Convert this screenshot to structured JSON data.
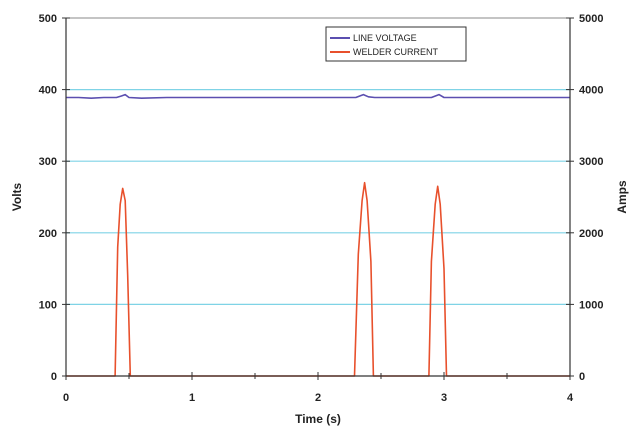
{
  "chart_data": {
    "type": "line",
    "xlabel": "Time (s)",
    "ylabel_left": "Volts",
    "ylabel_right": "Amps",
    "xlim": [
      0,
      4
    ],
    "ylim_left": [
      0,
      500
    ],
    "ylim_right": [
      0,
      5000
    ],
    "x_ticks": [
      0,
      1,
      2,
      3,
      4
    ],
    "x_tick_labels": [
      "0",
      "1",
      "2",
      "3",
      "4"
    ],
    "y_left_ticks": [
      0,
      100,
      200,
      300,
      400,
      500
    ],
    "y_left_tick_labels": [
      "0",
      "100",
      "200",
      "300",
      "400",
      "500"
    ],
    "y_right_ticks": [
      0,
      1000,
      2000,
      3000,
      4000,
      5000
    ],
    "y_right_tick_labels": [
      "0",
      "1000",
      "2000",
      "3000",
      "4000",
      "5000"
    ],
    "grid": "horizontal",
    "legend_position": "top-right",
    "series": [
      {
        "name": "LINE VOLTAGE",
        "axis": "left",
        "color": "#5b4fb0",
        "x": [
          0,
          0.1,
          0.2,
          0.3,
          0.4,
          0.44,
          0.47,
          0.5,
          0.6,
          0.8,
          1.0,
          1.2,
          1.4,
          1.6,
          1.8,
          2.0,
          2.2,
          2.3,
          2.36,
          2.4,
          2.45,
          2.6,
          2.8,
          2.9,
          2.96,
          3.0,
          3.05,
          3.2,
          3.4,
          3.6,
          3.8,
          4.0
        ],
        "y": [
          389,
          389,
          388,
          389,
          389,
          391,
          393,
          389,
          388,
          389,
          389,
          389,
          389,
          389,
          389,
          389,
          389,
          389,
          393,
          390,
          389,
          389,
          389,
          389,
          393,
          389,
          389,
          389,
          389,
          389,
          389,
          389
        ]
      },
      {
        "name": "WELDER CURRENT",
        "axis": "right",
        "color": "#e8502c",
        "x": [
          0,
          0.39,
          0.41,
          0.43,
          0.45,
          0.47,
          0.49,
          0.51,
          1.6,
          2.29,
          2.32,
          2.35,
          2.37,
          2.39,
          2.42,
          2.44,
          2.88,
          2.9,
          2.93,
          2.95,
          2.97,
          3.0,
          3.02,
          4.0
        ],
        "y": [
          0,
          0,
          1800,
          2400,
          2620,
          2450,
          1400,
          0,
          0,
          0,
          1700,
          2450,
          2700,
          2450,
          1600,
          0,
          0,
          1600,
          2400,
          2650,
          2400,
          1500,
          0,
          0
        ]
      }
    ]
  }
}
